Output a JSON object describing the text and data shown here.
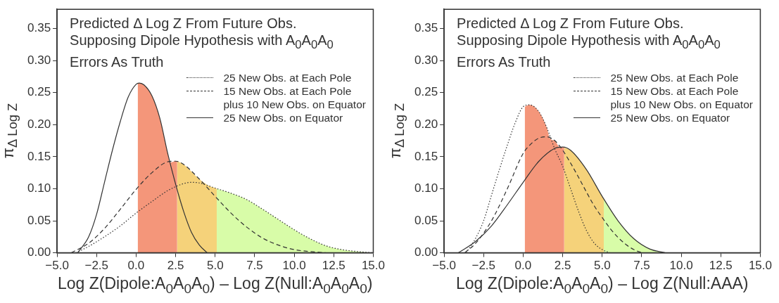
{
  "chart_data": [
    {
      "type": "line",
      "title": "Predicted Δ Log Z From Future Obs. Supposing Dipole Hypothesis with A$_{0}$A$_{0}$A$_{0}$ Errors As Truth",
      "xlabel": "Log Z(Dipole:A$_{0}$A$_{0}$A$_{0}$) – Log Z(Null:A$_{0}$A$_{0}$A$_{0}$)",
      "ylabel": "π$_{Δ Log Z}$",
      "xlim": [
        -5,
        15
      ],
      "ylim": [
        0,
        0.38
      ],
      "xticks": [
        {
          "value": -5,
          "label": "−5.0"
        },
        {
          "value": -2.5,
          "label": "−2.5"
        },
        {
          "value": 0,
          "label": "0.0"
        },
        {
          "value": 2.5,
          "label": "2.5"
        },
        {
          "value": 5,
          "label": "5.0"
        },
        {
          "value": 7.5,
          "label": "7.5"
        },
        {
          "value": 10,
          "label": "10.0"
        },
        {
          "value": 12.5,
          "label": "12.5"
        },
        {
          "value": 15,
          "label": "15.0"
        }
      ],
      "yticks": [
        {
          "value": 0,
          "label": "0.00"
        },
        {
          "value": 0.05,
          "label": "0.05"
        },
        {
          "value": 0.1,
          "label": "0.10"
        },
        {
          "value": 0.15,
          "label": "0.15"
        },
        {
          "value": 0.2,
          "label": "0.20"
        },
        {
          "value": 0.25,
          "label": "0.25"
        },
        {
          "value": 0.3,
          "label": "0.30"
        },
        {
          "value": 0.35,
          "label": "0.35"
        }
      ],
      "grid": false,
      "legend": "top right",
      "series": [
        {
          "type": "area",
          "color": "#f4967a",
          "x": [
            0.1,
            0.2,
            0.5,
            1,
            1.5,
            2,
            2.14,
            2.5,
            2.6
          ],
          "values": [
            0.264,
            0.265,
            0.262,
            0.245,
            0.21,
            0.155,
            0.141,
            0.143,
            0.143
          ]
        },
        {
          "type": "area",
          "color": "#f5d27a",
          "x": [
            2.6,
            3,
            4,
            4.65,
            5,
            5.1
          ],
          "values": [
            0.143,
            0.138,
            0.115,
            0.104,
            0.101,
            0.1
          ]
        },
        {
          "type": "area",
          "color": "#d8fca8",
          "x": [
            5.1,
            6,
            7,
            8,
            9,
            10,
            11,
            12,
            13,
            14,
            15
          ],
          "values": [
            0.1,
            0.093,
            0.083,
            0.068,
            0.052,
            0.036,
            0.022,
            0.011,
            0.005,
            0.002,
            0
          ]
        },
        {
          "type": "line",
          "name": "25 New Obs. at Each Pole",
          "color": "#333333",
          "line_style": "dotted",
          "x": [
            -3.8,
            -3,
            -2,
            -1,
            0,
            1,
            2,
            3,
            3.5,
            4,
            5,
            6,
            7,
            8,
            9,
            10,
            11,
            12,
            13,
            14,
            15
          ],
          "values": [
            0,
            0.01,
            0.025,
            0.042,
            0.062,
            0.08,
            0.097,
            0.108,
            0.11,
            0.109,
            0.101,
            0.093,
            0.083,
            0.068,
            0.052,
            0.036,
            0.022,
            0.011,
            0.005,
            0.002,
            0
          ]
        },
        {
          "type": "line",
          "name": "15 New Obs. at Each Pole plus 10 New Obs. on Equator",
          "color": "#333333",
          "line_style": "dashed",
          "x": [
            -4.1,
            -3,
            -2,
            -1,
            0,
            1,
            2,
            2.5,
            3,
            4,
            5,
            6,
            7,
            8,
            9,
            10,
            11,
            12
          ],
          "values": [
            0,
            0.015,
            0.038,
            0.068,
            0.099,
            0.125,
            0.142,
            0.143,
            0.138,
            0.115,
            0.088,
            0.062,
            0.04,
            0.023,
            0.012,
            0.005,
            0.002,
            0
          ]
        },
        {
          "type": "line",
          "name": "25 New Obs. on Equator",
          "color": "#333333",
          "line_style": "solid",
          "x": [
            -3.7,
            -3,
            -2.5,
            -2,
            -1.5,
            -1,
            -0.5,
            0,
            0.2,
            0.5,
            1,
            1.5,
            2,
            2.5,
            3,
            3.5,
            4,
            4.5
          ],
          "values": [
            0,
            0.025,
            0.06,
            0.11,
            0.16,
            0.205,
            0.243,
            0.263,
            0.265,
            0.262,
            0.245,
            0.21,
            0.155,
            0.107,
            0.065,
            0.032,
            0.012,
            0
          ]
        }
      ]
    },
    {
      "type": "line",
      "title": "Predicted Δ Log Z From Future Obs. Supposing Dipole Hypothesis with A$_{0}$A$_{0}$A$_{0}$ Errors As Truth",
      "xlabel": "Log Z(Dipole:A$_{0}$A$_{0}$A$_{0}$) – Log Z(Null:AAA)",
      "ylabel": "π$_{Δ Log Z}$",
      "xlim": [
        -5,
        15
      ],
      "ylim": [
        0,
        0.38
      ],
      "xticks": [
        {
          "value": -5,
          "label": "−5.0"
        },
        {
          "value": -2.5,
          "label": "−2.5"
        },
        {
          "value": 0,
          "label": "0.0"
        },
        {
          "value": 2.5,
          "label": "2.5"
        },
        {
          "value": 5,
          "label": "5.0"
        },
        {
          "value": 7.5,
          "label": "7.5"
        },
        {
          "value": 10,
          "label": "10.0"
        },
        {
          "value": 12.5,
          "label": "12.5"
        },
        {
          "value": 15,
          "label": "15.0"
        }
      ],
      "yticks": [
        {
          "value": 0,
          "label": "0.00"
        },
        {
          "value": 0.05,
          "label": "0.05"
        },
        {
          "value": 0.1,
          "label": "0.10"
        },
        {
          "value": 0.15,
          "label": "0.15"
        },
        {
          "value": 0.2,
          "label": "0.20"
        },
        {
          "value": 0.25,
          "label": "0.25"
        },
        {
          "value": 0.3,
          "label": "0.30"
        },
        {
          "value": 0.35,
          "label": "0.35"
        }
      ],
      "grid": false,
      "legend": "top right",
      "series": [
        {
          "type": "area",
          "color": "#f4967a",
          "x": [
            0.1,
            0.4,
            1,
            1.5,
            1.7,
            2,
            2.31,
            2.5,
            2.6
          ],
          "values": [
            0.228,
            0.231,
            0.22,
            0.195,
            0.178,
            0.175,
            0.165,
            0.165,
            0.164
          ]
        },
        {
          "type": "area",
          "color": "#f5d27a",
          "x": [
            2.6,
            3,
            4,
            5,
            5.1
          ],
          "values": [
            0.164,
            0.16,
            0.13,
            0.088,
            0.084
          ]
        },
        {
          "type": "area",
          "color": "#d8fca8",
          "x": [
            5.1,
            6,
            7,
            8,
            9
          ],
          "values": [
            0.084,
            0.05,
            0.022,
            0.006,
            0
          ]
        },
        {
          "type": "line",
          "name": "25 New Obs. at Each Pole",
          "color": "#333333",
          "line_style": "dotted",
          "x": [
            -3.6,
            -3,
            -2.5,
            -2,
            -1.5,
            -1,
            -0.5,
            0,
            0.4,
            1,
            1.5,
            2,
            2.5,
            3,
            3.5,
            4,
            4.5,
            5,
            5.5
          ],
          "values": [
            0,
            0.023,
            0.05,
            0.09,
            0.13,
            0.168,
            0.203,
            0.228,
            0.231,
            0.22,
            0.195,
            0.162,
            0.135,
            0.1,
            0.065,
            0.035,
            0.015,
            0.005,
            0
          ]
        },
        {
          "type": "line",
          "name": "15 New Obs. at Each Pole plus 10 New Obs. on Equator",
          "color": "#333333",
          "line_style": "dashed",
          "x": [
            -3.7,
            -3,
            -2,
            -1,
            0,
            0.5,
            1,
            1.5,
            2,
            2.5,
            3,
            3.5,
            4,
            4.5,
            5,
            5.5,
            6,
            6.5,
            7,
            7.5
          ],
          "values": [
            0,
            0.015,
            0.05,
            0.1,
            0.155,
            0.17,
            0.179,
            0.181,
            0.175,
            0.16,
            0.14,
            0.118,
            0.095,
            0.073,
            0.055,
            0.038,
            0.024,
            0.013,
            0.005,
            0
          ]
        },
        {
          "type": "line",
          "name": "25 New Obs. on Equator",
          "color": "#333333",
          "line_style": "solid",
          "x": [
            -4.1,
            -3,
            -2,
            -1,
            0,
            1,
            2,
            2.5,
            3,
            4,
            5,
            6,
            7,
            8,
            9
          ],
          "values": [
            0,
            0.018,
            0.042,
            0.075,
            0.11,
            0.143,
            0.163,
            0.165,
            0.16,
            0.13,
            0.088,
            0.05,
            0.022,
            0.006,
            0
          ]
        }
      ]
    }
  ]
}
